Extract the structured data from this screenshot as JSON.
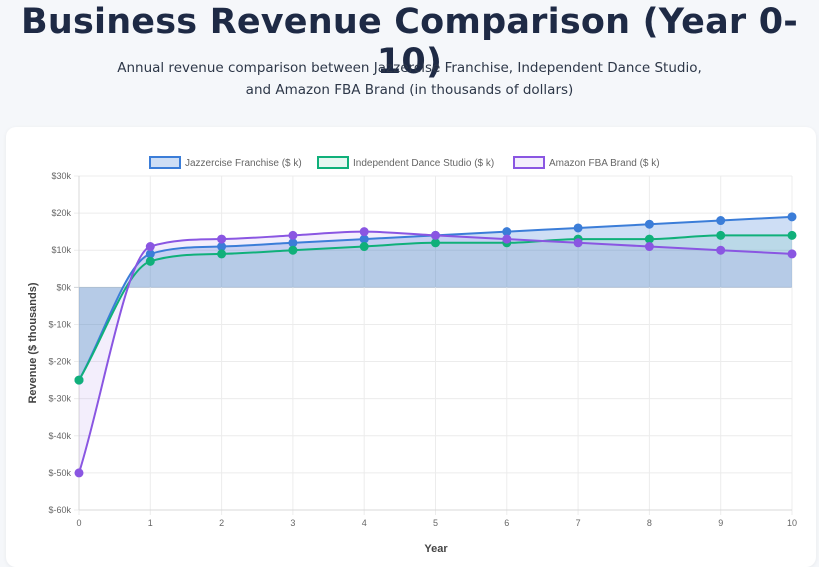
{
  "header": {
    "title": "Business Revenue Comparison (Year 0-10)",
    "subtitle": "Annual revenue comparison between Jazzercise Franchise, Independent Dance Studio, and Amazon FBA Brand (in thousands of dollars)"
  },
  "chart_data": {
    "type": "line",
    "title": "",
    "xlabel": "Year",
    "ylabel": "Revenue ($ thousands)",
    "categories": [
      "0",
      "1",
      "2",
      "3",
      "4",
      "5",
      "6",
      "7",
      "8",
      "9",
      "10"
    ],
    "y_ticks": [
      "$30k",
      "$20k",
      "$10k",
      "$0k",
      "$-10k",
      "$-20k",
      "$-30k",
      "$-40k",
      "$-50k",
      "$-60k"
    ],
    "ylim": [
      -60,
      30
    ],
    "grid": true,
    "legend_position": "top",
    "series": [
      {
        "name": "Jazzercise Franchise ($ k)",
        "color": "#3b7dd8",
        "fill": "rgba(59,125,216,0.25)",
        "values": [
          -25,
          9,
          11,
          12,
          13,
          14,
          15,
          16,
          17,
          18,
          19
        ]
      },
      {
        "name": "Independent Dance Studio ($ k)",
        "color": "#10b07a",
        "fill": "rgba(16,176,122,0.10)",
        "values": [
          -25,
          7,
          9,
          10,
          11,
          12,
          12,
          13,
          13,
          14,
          14
        ]
      },
      {
        "name": "Amazon FBA Brand ($ k)",
        "color": "#8a56e2",
        "fill": "rgba(138,86,226,0.10)",
        "values": [
          -50,
          11,
          13,
          14,
          15,
          14,
          13,
          12,
          11,
          10,
          9
        ]
      }
    ]
  }
}
